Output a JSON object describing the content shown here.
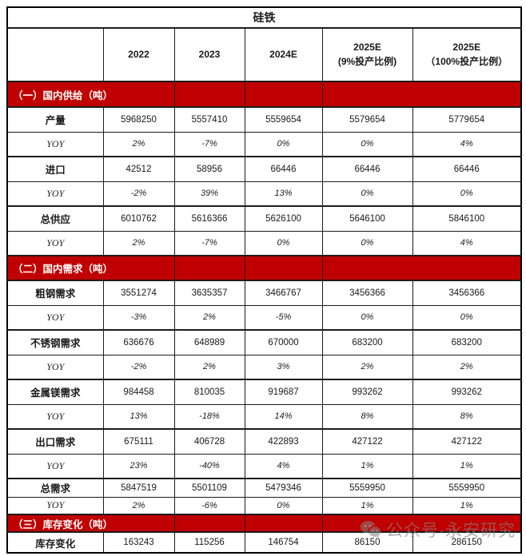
{
  "title": "硅铁",
  "watermark": {
    "text": "公众号·永安研究",
    "icon": "wechat-icon"
  },
  "colors": {
    "section_background": "#C00000",
    "section_text": "#FFFFFF",
    "border": "#000000",
    "watermark_gray": "#828282"
  },
  "table": {
    "columns": [
      "",
      "2022",
      "2023",
      "2024E",
      "2025E\n(9%投产比例)",
      "2025E\n（100%投产比例）"
    ],
    "sections": [
      {
        "header": "（一）国内供给（吨）",
        "rows": [
          {
            "label": "产量",
            "type": "item",
            "values": [
              "5968250",
              "5557410",
              "5559654",
              "5579654",
              "5779654"
            ]
          },
          {
            "label": "YOY",
            "type": "yoy",
            "values": [
              "2%",
              "-7%",
              "0%",
              "0%",
              "4%"
            ]
          },
          {
            "label": "进口",
            "type": "item",
            "values": [
              "42512",
              "58956",
              "66446",
              "66446",
              "66446"
            ]
          },
          {
            "label": "YOY",
            "type": "yoy",
            "values": [
              "-2%",
              "39%",
              "13%",
              "0%",
              "0%"
            ]
          },
          {
            "label": "总供应",
            "type": "item",
            "values": [
              "6010762",
              "5616366",
              "5626100",
              "5646100",
              "5846100"
            ]
          },
          {
            "label": "YOY",
            "type": "yoy",
            "values": [
              "2%",
              "-7%",
              "0%",
              "0%",
              "4%"
            ]
          }
        ]
      },
      {
        "header": "（二）国内需求（吨）",
        "rows": [
          {
            "label": "粗钢需求",
            "type": "item",
            "values": [
              "3551274",
              "3635357",
              "3466767",
              "3456366",
              "3456366"
            ]
          },
          {
            "label": "YOY",
            "type": "yoy",
            "values": [
              "-3%",
              "2%",
              "-5%",
              "0%",
              "0%"
            ]
          },
          {
            "label": "不锈钢需求",
            "type": "item",
            "values": [
              "636676",
              "648989",
              "670000",
              "683200",
              "683200"
            ]
          },
          {
            "label": "YOY",
            "type": "yoy",
            "values": [
              "-2%",
              "2%",
              "3%",
              "2%",
              "2%"
            ]
          },
          {
            "label": "金属镁需求",
            "type": "item",
            "values": [
              "984458",
              "810035",
              "919687",
              "993262",
              "993262"
            ]
          },
          {
            "label": "YOY",
            "type": "yoy",
            "values": [
              "13%",
              "-18%",
              "14%",
              "8%",
              "8%"
            ]
          },
          {
            "label": "出口需求",
            "type": "item",
            "values": [
              "675111",
              "406728",
              "422893",
              "427122",
              "427122"
            ]
          },
          {
            "label": "YOY",
            "type": "yoy",
            "values": [
              "23%",
              "-40%",
              "4%",
              "1%",
              "1%"
            ]
          },
          {
            "label": "总需求",
            "type": "item",
            "values": [
              "5847519",
              "5501109",
              "5479346",
              "5559950",
              "5559950"
            ]
          },
          {
            "label": "YOY",
            "type": "yoy",
            "values": [
              "2%",
              "-6%",
              "0%",
              "1%",
              "1%"
            ]
          }
        ]
      },
      {
        "header": "（三）库存变化（吨）",
        "rows": [
          {
            "label": "库存变化",
            "type": "item",
            "values": [
              "163243",
              "115256",
              "146754",
              "86150",
              "286150"
            ]
          }
        ]
      }
    ]
  }
}
